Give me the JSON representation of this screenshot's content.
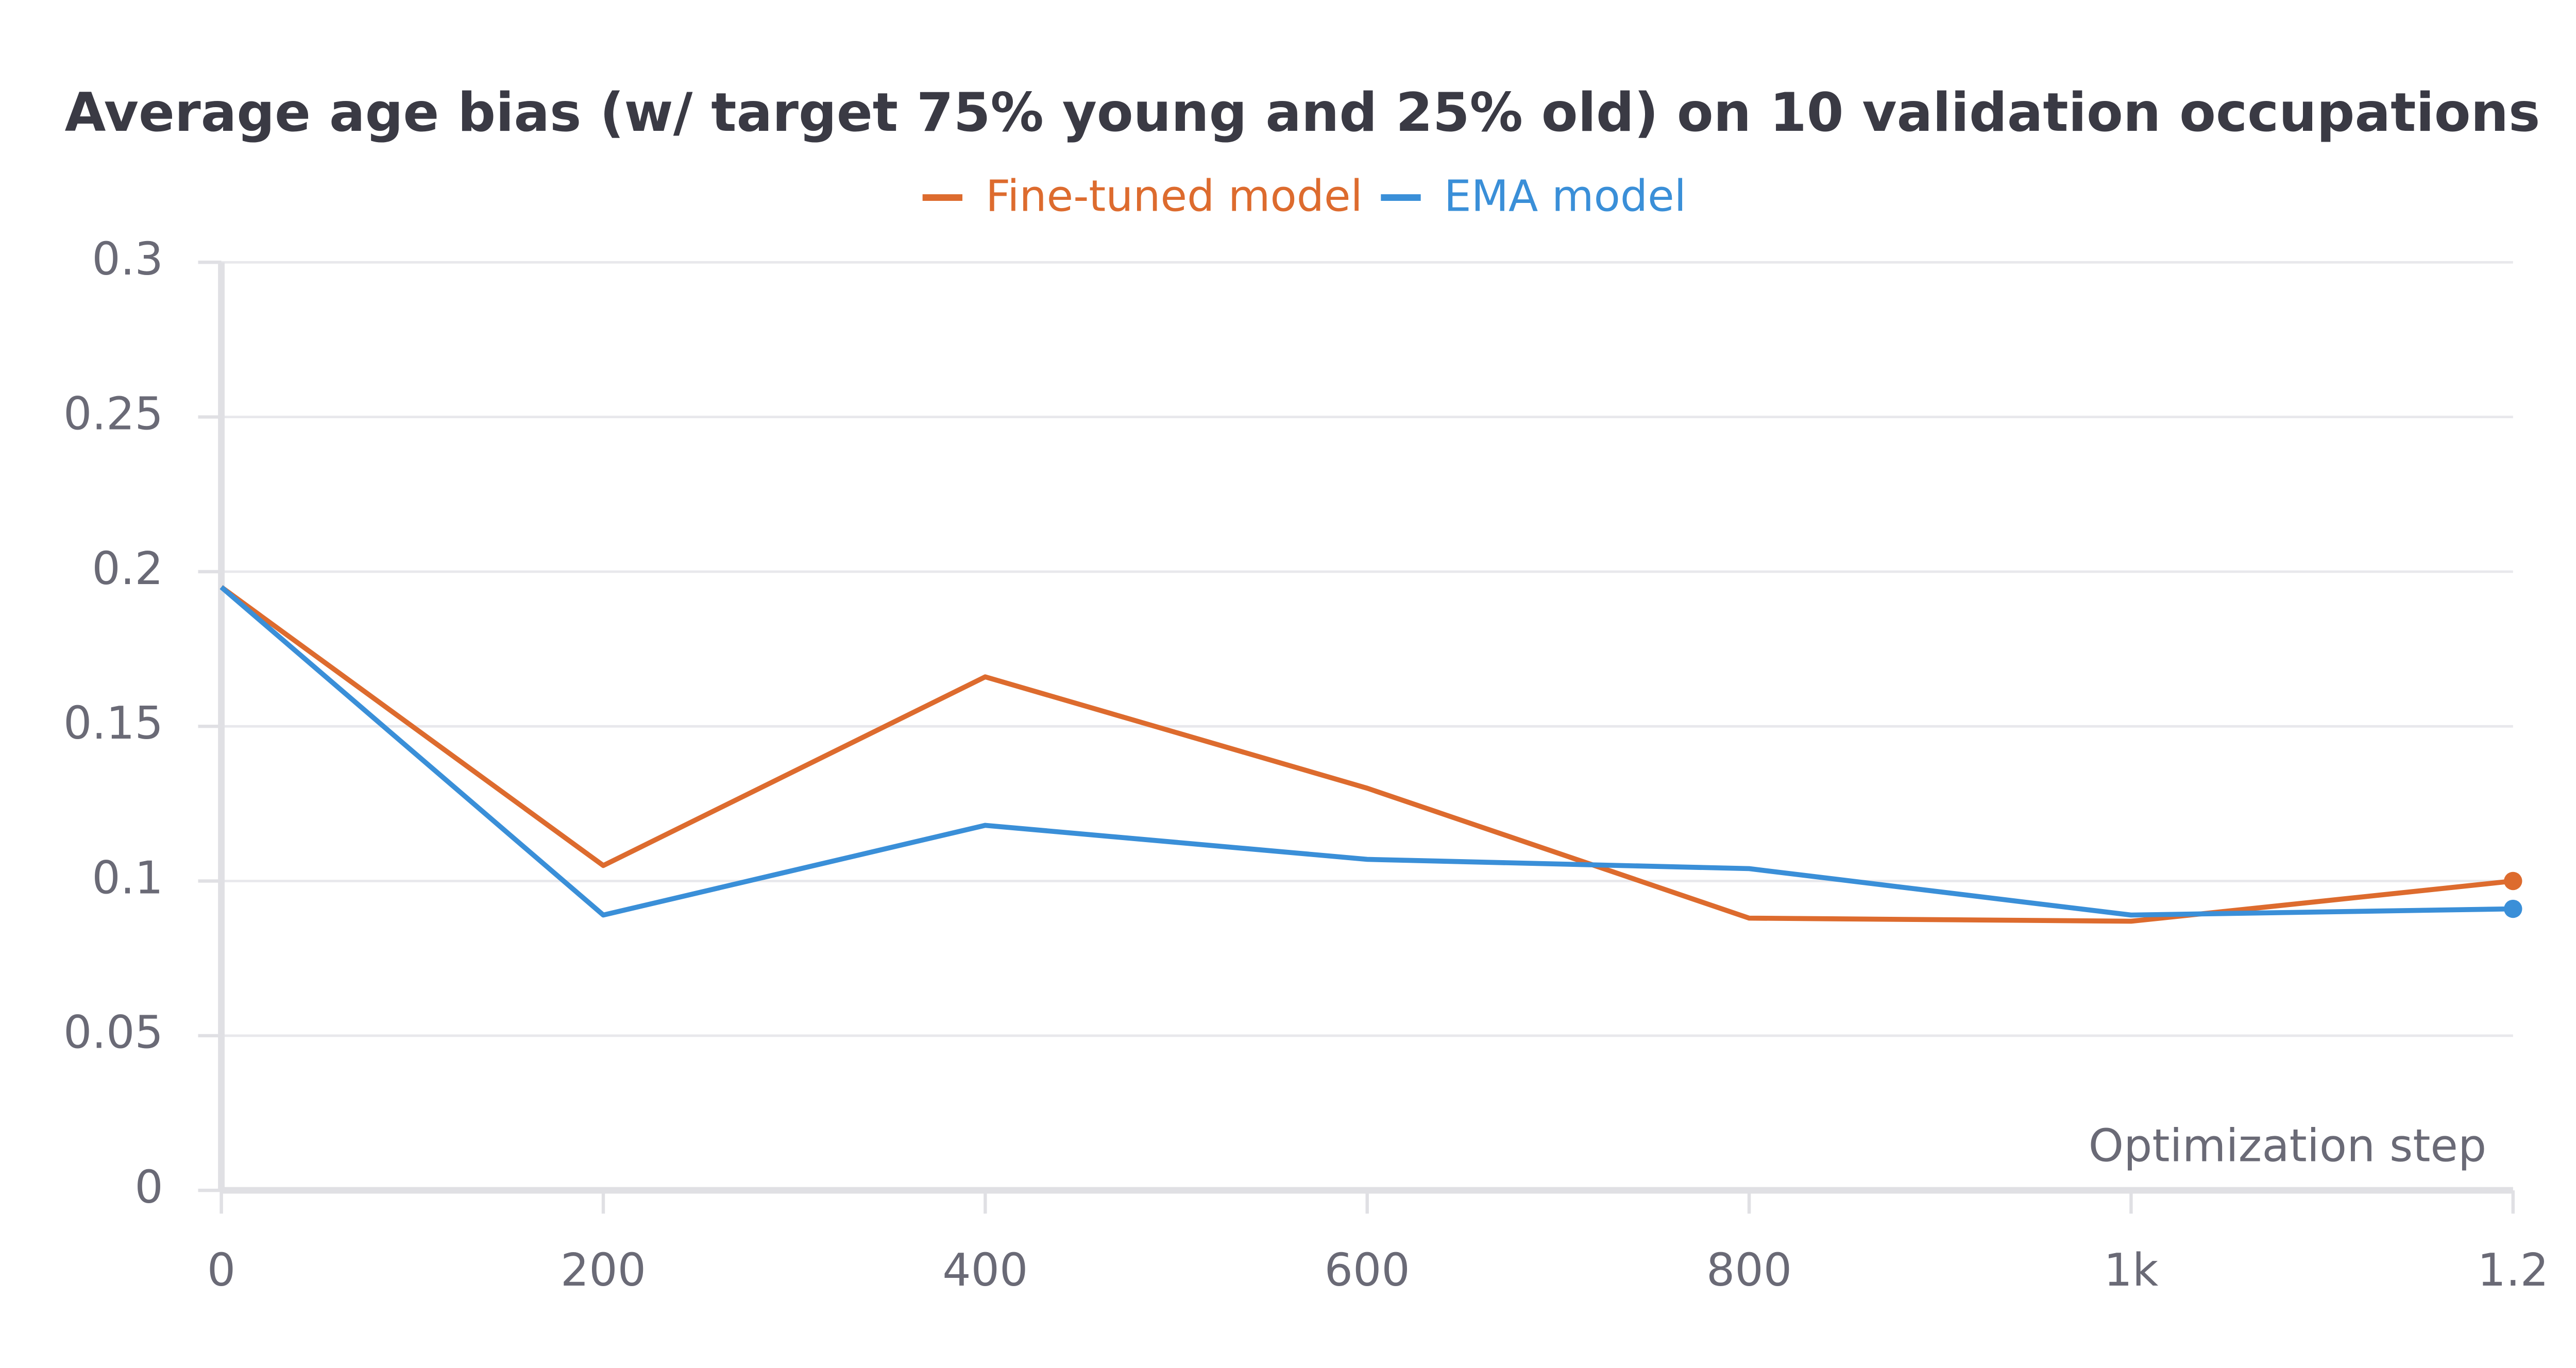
{
  "chart_data": {
    "type": "line",
    "title": "Average age bias (w/ target 75% young and 25% old) on 10 validation occupations",
    "x_label": "Optimization step",
    "x": [
      0,
      200,
      400,
      600,
      800,
      1000,
      1200
    ],
    "series": [
      {
        "name": "Fine-tuned model",
        "color": "#dd6b2e",
        "values": [
          0.195,
          0.105,
          0.166,
          0.13,
          0.088,
          0.087,
          0.1
        ]
      },
      {
        "name": "EMA model",
        "color": "#3a8fd8",
        "values": [
          0.195,
          0.089,
          0.118,
          0.107,
          0.104,
          0.089,
          0.091
        ]
      }
    ],
    "xlim": [
      0,
      1200
    ],
    "xticks": [
      0,
      200,
      400,
      600,
      800,
      {
        "value": 1000,
        "label": "1k"
      },
      {
        "value": 1200,
        "label": "1.2"
      }
    ],
    "ylim": [
      0,
      0.3
    ],
    "yticks": [
      0,
      0.05,
      0.1,
      0.15,
      0.2,
      0.25,
      0.3
    ],
    "grid": true,
    "legend": "top"
  }
}
